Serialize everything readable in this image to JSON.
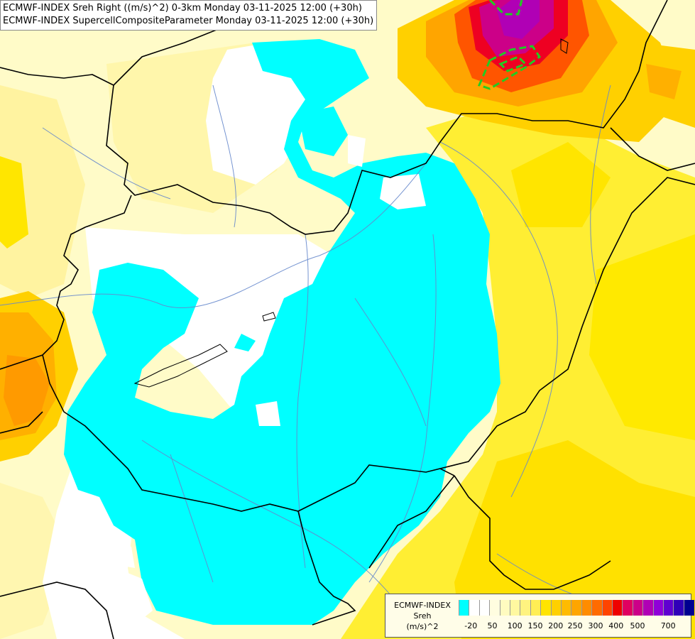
{
  "titles": {
    "line1": "ECMWF-INDEX Sreh Right ((m/s)^2) 0-3km Monday 03-11-2025 12:00 (+30h)",
    "line2": "ECMWF-INDEX SupercellCompositeParameter Monday 03-11-2025 12:00 (+30h)"
  },
  "legend": {
    "line1": "ECMWF-INDEX",
    "line2": "Sreh",
    "line3": "(m/s)^2",
    "colors": [
      "#00ffff",
      "#ffffff",
      "#ffffff",
      "#fffde0",
      "#fffbc0",
      "#fff8a0",
      "#fff380",
      "#ffee55",
      "#ffe400",
      "#ffd000",
      "#ffbb00",
      "#ffa500",
      "#ff8c00",
      "#ff6b00",
      "#ff4400",
      "#ee0000",
      "#e00060",
      "#cc0088",
      "#b000b5",
      "#9000d8",
      "#6000d0",
      "#3000b8",
      "#000090"
    ],
    "ticks": [
      "-20",
      "50",
      "100",
      "150",
      "200",
      "250",
      "300",
      "400",
      "500",
      "700"
    ]
  },
  "map_colors": {
    "background": "#fffbc8",
    "cyan_zone": "#00ffff",
    "white_zone": "#ffffff",
    "yellow": "#ffee33",
    "orange": "#ffa500",
    "red": "#ff2200",
    "purple": "#b000b5",
    "scp_contour": "#22cc22"
  }
}
